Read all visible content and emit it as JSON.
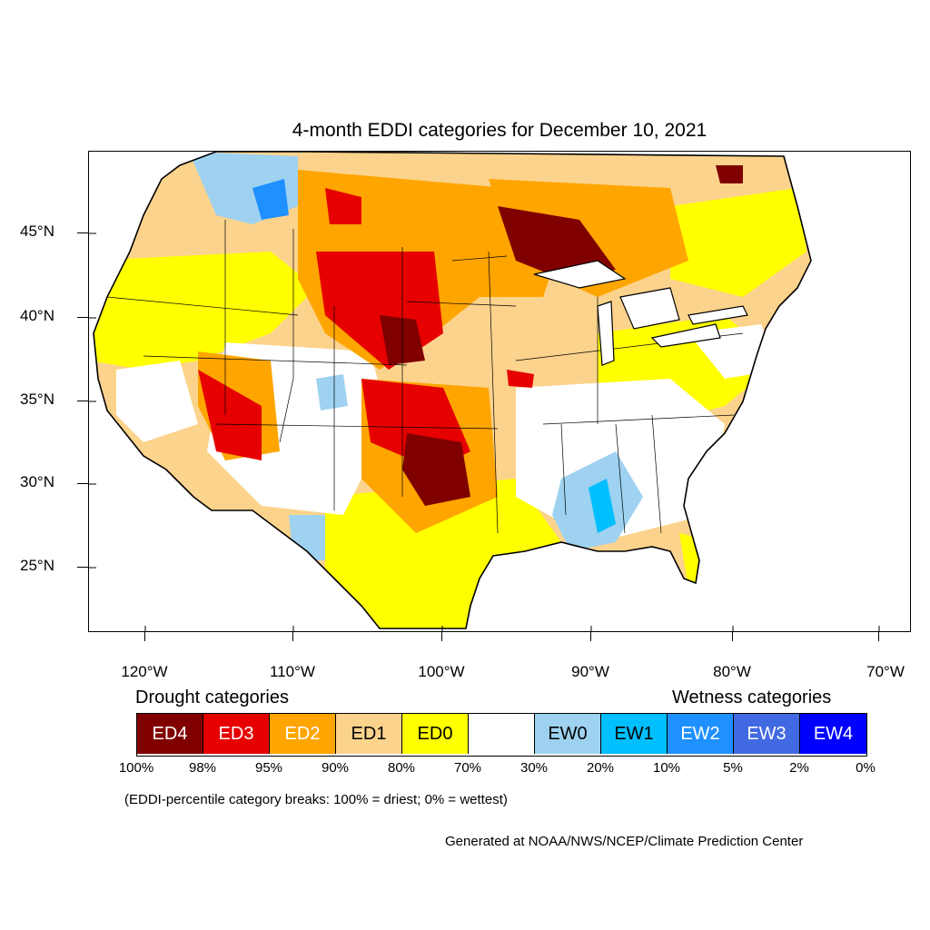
{
  "title": "4-month EDDI categories for December 10, 2021",
  "map": {
    "region": "Contiguous United States",
    "variable": "4-month EDDI",
    "date": "December 10, 2021",
    "lat_labels": [
      "45°N",
      "40°N",
      "35°N",
      "30°N",
      "25°N"
    ],
    "lon_labels": [
      "120°W",
      "110°W",
      "100°W",
      "90°W",
      "80°W",
      "70°W"
    ]
  },
  "legend": {
    "drought_title": "Drought categories",
    "wetness_title": "Wetness categories",
    "categories": [
      {
        "label": "ED4",
        "color": "#800000",
        "text_color": "#ffffff"
      },
      {
        "label": "ED3",
        "color": "#e60000",
        "text_color": "#ffffff"
      },
      {
        "label": "ED2",
        "color": "#ffa500",
        "text_color": "#ffffff"
      },
      {
        "label": "ED1",
        "color": "#fcd38c",
        "text_color": "#000000"
      },
      {
        "label": "ED0",
        "color": "#ffff00",
        "text_color": "#000000"
      },
      {
        "label": "",
        "color": "#ffffff",
        "text_color": "#000000"
      },
      {
        "label": "EW0",
        "color": "#9ed2f0",
        "text_color": "#000000"
      },
      {
        "label": "EW1",
        "color": "#00bfff",
        "text_color": "#000000"
      },
      {
        "label": "EW2",
        "color": "#1e90ff",
        "text_color": "#ffffff"
      },
      {
        "label": "EW3",
        "color": "#4169e1",
        "text_color": "#ffffff"
      },
      {
        "label": "EW4",
        "color": "#0000ff",
        "text_color": "#ffffff"
      }
    ],
    "percentiles": [
      "100%",
      "98%",
      "95%",
      "90%",
      "80%",
      "70%",
      "30%",
      "20%",
      "10%",
      "5%",
      "2%",
      "0%"
    ]
  },
  "note": "(EDDI-percentile category breaks: 100% = driest; 0% = wettest)",
  "credit": "Generated at NOAA/NWS/NCEP/Climate Prediction Center"
}
